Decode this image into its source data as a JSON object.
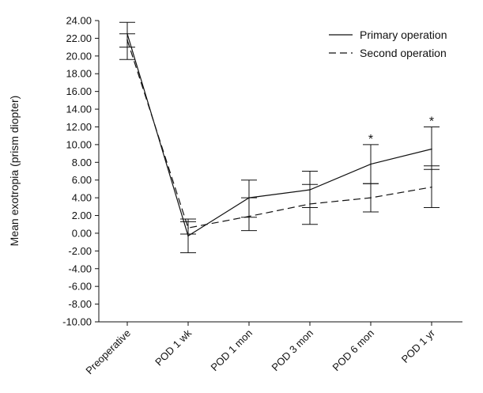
{
  "chart_data": {
    "type": "line",
    "categories": [
      "Preoperative",
      "POD 1 wk",
      "POD 1 mon",
      "POD 3 mon",
      "POD 6 mon",
      "POD 1 yr"
    ],
    "ylabel": "Mean exotropia (prism diopter)",
    "ylim": [
      -10,
      24
    ],
    "yticks": [
      "24.00",
      "22.00",
      "20.00",
      "18.00",
      "16.00",
      "14.00",
      "12.00",
      "10.00",
      "8.00",
      "6.00",
      "4.00",
      "2.00",
      "0.00",
      "-2.00",
      "-4.00",
      "-6.00",
      "-8.00",
      "-10.00"
    ],
    "series": [
      {
        "name": "Primary operation",
        "style": "solid",
        "values": [
          22.5,
          -0.3,
          4.0,
          4.9,
          7.8,
          9.5
        ],
        "err_low": [
          21.0,
          -2.2,
          1.8,
          2.9,
          5.6,
          7.2
        ],
        "err_high": [
          23.8,
          1.3,
          6.0,
          7.0,
          10.0,
          12.0
        ]
      },
      {
        "name": "Second operation",
        "style": "dashed",
        "values": [
          21.8,
          0.6,
          1.9,
          3.3,
          4.0,
          5.2
        ],
        "err_low": [
          19.6,
          -0.1,
          0.3,
          1.0,
          2.4,
          2.9
        ],
        "err_high": [
          22.5,
          1.6,
          4.0,
          5.5,
          5.6,
          7.6
        ]
      }
    ],
    "annotations": [
      {
        "category": "POD 6 mon",
        "text": "*"
      },
      {
        "category": "POD 1 yr",
        "text": "*"
      }
    ],
    "legend": "top-right",
    "grid": false
  }
}
